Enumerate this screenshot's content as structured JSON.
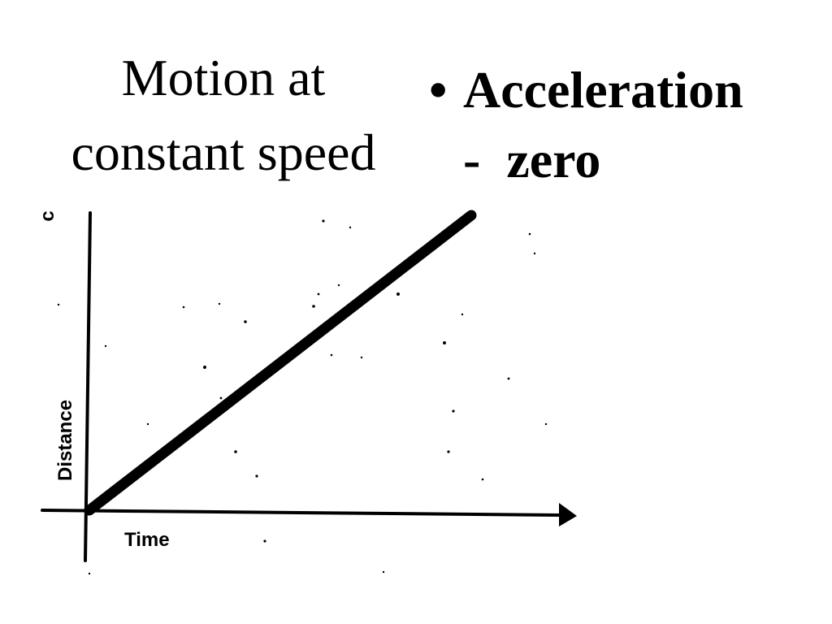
{
  "slide": {
    "title_line1": "Motion at",
    "title_line2": "constant speed",
    "bullet_marker": "•",
    "bullet_text": "Acceleration",
    "sub_text": "-  zero"
  },
  "chart_data": {
    "type": "line",
    "xlabel": "Time",
    "ylabel": "Distance",
    "y_top_fragment": "c",
    "series": [
      {
        "x": [
          0,
          1
        ],
        "y": [
          0,
          1
        ]
      }
    ],
    "xlim": [
      0,
      1.6
    ],
    "ylim": [
      0,
      1
    ],
    "grid": false
  }
}
